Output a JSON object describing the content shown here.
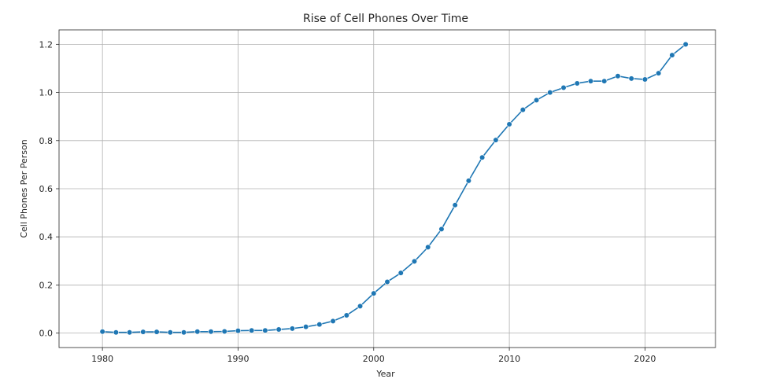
{
  "chart_data": {
    "type": "line",
    "title": "Rise of Cell Phones Over Time",
    "xlabel": "Year",
    "ylabel": "Cell Phones Per Person",
    "xlim": [
      1976.8,
      2025.2
    ],
    "ylim": [
      -0.06,
      1.26
    ],
    "xticks": [
      1980,
      1990,
      2000,
      2010,
      2020
    ],
    "yticks": [
      0.0,
      0.2,
      0.4,
      0.6,
      0.8,
      1.0,
      1.2
    ],
    "ytick_labels": [
      "0.0",
      "0.2",
      "0.4",
      "0.6",
      "0.8",
      "1.0",
      "1.2"
    ],
    "grid": true,
    "color": "#1f77b4",
    "series": [
      {
        "name": "",
        "x": [
          1980,
          1981,
          1982,
          1983,
          1984,
          1985,
          1986,
          1987,
          1988,
          1989,
          1990,
          1991,
          1992,
          1993,
          1994,
          1995,
          1996,
          1997,
          1998,
          1999,
          2000,
          2001,
          2002,
          2003,
          2004,
          2005,
          2006,
          2007,
          2008,
          2009,
          2010,
          2011,
          2012,
          2013,
          2014,
          2015,
          2016,
          2017,
          2018,
          2019,
          2020,
          2021,
          2022,
          2023
        ],
        "y": [
          0.006,
          0.003,
          0.003,
          0.005,
          0.005,
          0.003,
          0.003,
          0.006,
          0.006,
          0.007,
          0.01,
          0.011,
          0.011,
          0.015,
          0.019,
          0.026,
          0.036,
          0.05,
          0.074,
          0.112,
          0.165,
          0.213,
          0.25,
          0.298,
          0.357,
          0.432,
          0.532,
          0.633,
          0.73,
          0.802,
          0.868,
          0.928,
          0.968,
          1.0,
          1.02,
          1.038,
          1.047,
          1.047,
          1.068,
          1.058,
          1.054,
          1.08,
          1.155,
          1.2
        ]
      }
    ]
  }
}
